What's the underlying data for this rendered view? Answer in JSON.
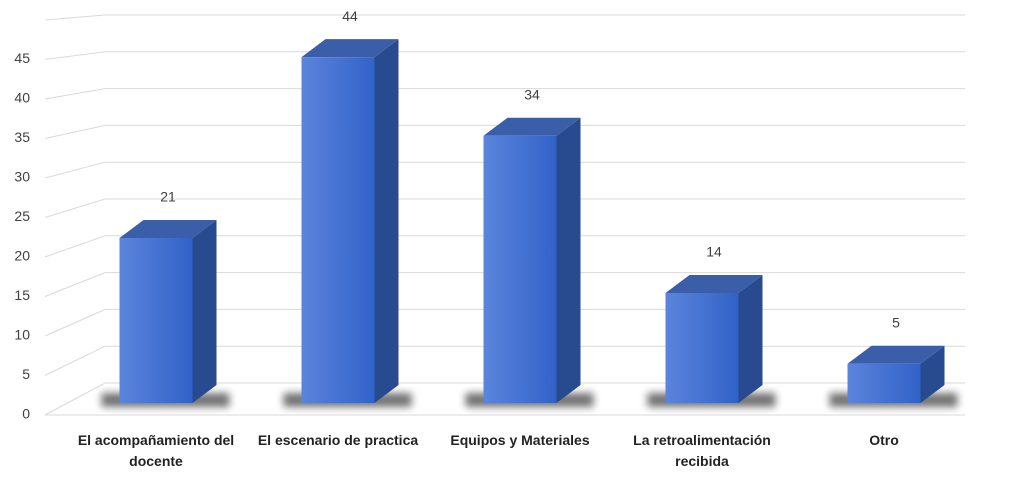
{
  "chart_data": {
    "type": "bar3d",
    "categories": [
      "El acompañamiento del docente",
      "El escenario de practica",
      "Equipos y Materiales",
      "La retroalimentación recibida",
      "Otro"
    ],
    "values": [
      21,
      44,
      34,
      14,
      5
    ],
    "color": "#3a68cf",
    "ylim": [
      0,
      50
    ],
    "yticks": [
      0,
      5,
      10,
      15,
      20,
      25,
      30,
      35,
      40,
      45
    ],
    "grid": true
  }
}
